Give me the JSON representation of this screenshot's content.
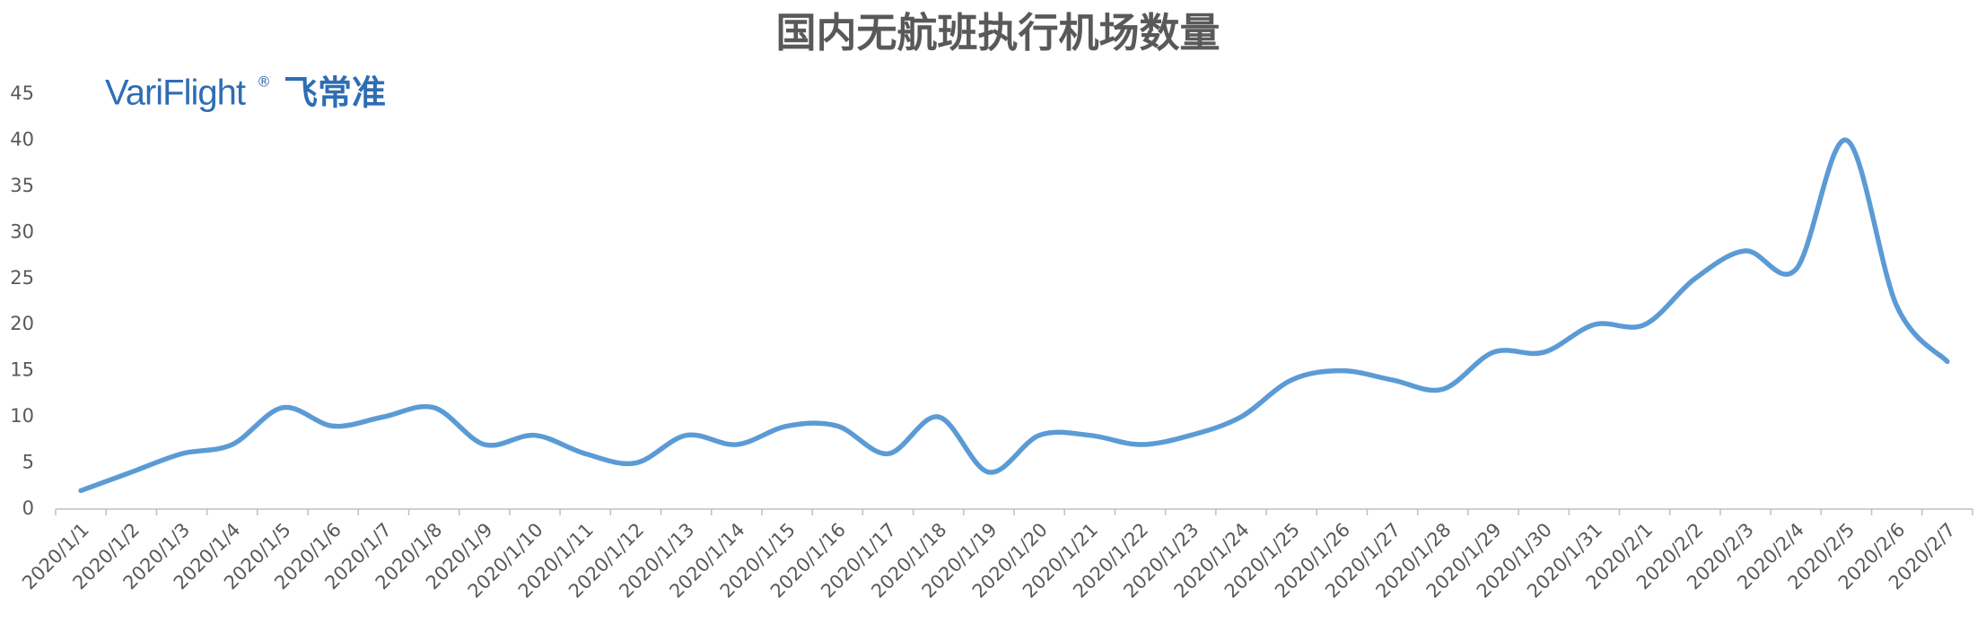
{
  "chart_data": {
    "type": "line",
    "title": "国内无航班执行机场数量",
    "logo": {
      "brand": "VariFlight",
      "mark": "®",
      "chinese": "飞常准"
    },
    "categories": [
      "2020/1/1",
      "2020/1/2",
      "2020/1/3",
      "2020/1/4",
      "2020/1/5",
      "2020/1/6",
      "2020/1/7",
      "2020/1/8",
      "2020/1/9",
      "2020/1/10",
      "2020/1/11",
      "2020/1/12",
      "2020/1/13",
      "2020/1/14",
      "2020/1/15",
      "2020/1/16",
      "2020/1/17",
      "2020/1/18",
      "2020/1/19",
      "2020/1/20",
      "2020/1/21",
      "2020/1/22",
      "2020/1/23",
      "2020/1/24",
      "2020/1/25",
      "2020/1/26",
      "2020/1/27",
      "2020/1/28",
      "2020/1/29",
      "2020/1/30",
      "2020/1/31",
      "2020/2/1",
      "2020/2/2",
      "2020/2/3",
      "2020/2/4",
      "2020/2/5",
      "2020/2/6",
      "2020/2/7"
    ],
    "values": [
      2,
      4,
      6,
      7,
      11,
      9,
      10,
      11,
      7,
      8,
      6,
      5,
      8,
      7,
      9,
      9,
      6,
      10,
      4,
      8,
      8,
      7,
      8,
      10,
      14,
      15,
      14,
      13,
      17,
      17,
      20,
      20,
      25,
      28,
      26,
      40,
      22,
      16
    ],
    "color": "#5b9bd5",
    "smooth": true,
    "ylim": [
      0,
      45
    ],
    "yticks": [
      0,
      5,
      10,
      15,
      20,
      25,
      30,
      35,
      40,
      45
    ],
    "grid": false
  }
}
